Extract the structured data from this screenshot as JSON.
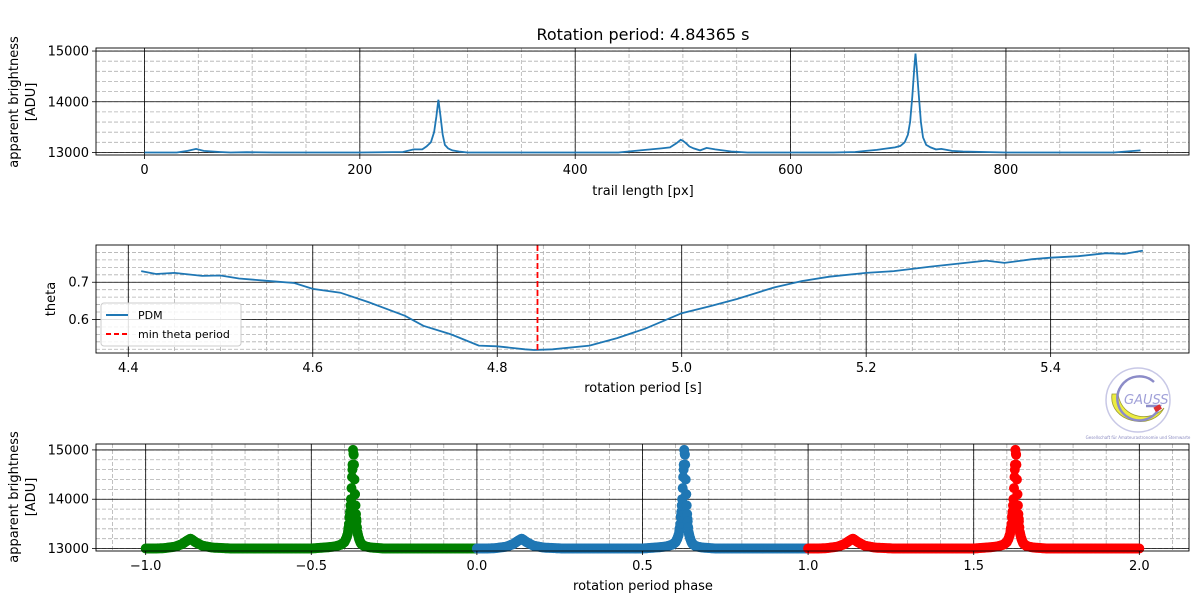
{
  "chart_data": [
    {
      "type": "line",
      "title": "Rotation period: 4.84365 s",
      "xlabel": "trail length [px]",
      "ylabel": [
        "apparent brightness",
        "[ADU]"
      ],
      "xlim": [
        -45,
        970
      ],
      "ylim": [
        12950,
        15060
      ],
      "xticks": [
        0,
        200,
        400,
        600,
        800
      ],
      "xtick_labels": [
        "0",
        "200",
        "400",
        "600",
        "800"
      ],
      "yticks": [
        13000,
        14000,
        15000
      ],
      "ytick_labels": [
        "13000",
        "14000",
        "15000"
      ],
      "grid": "major solid, minor dashed",
      "color": "#1f77b4",
      "series": [
        {
          "x": [
            0,
            30,
            40,
            48,
            55,
            70,
            80,
            95,
            120,
            160,
            200,
            240,
            250,
            258,
            262,
            266,
            269,
            271,
            273,
            275,
            277,
            279,
            282,
            286,
            292,
            300,
            320,
            360,
            400,
            440,
            460,
            470,
            480,
            488,
            494,
            498,
            500,
            503,
            506,
            510,
            516,
            522,
            530,
            545,
            560,
            600,
            640,
            660,
            670,
            680,
            690,
            697,
            702,
            706,
            709,
            711,
            713,
            715,
            716,
            717,
            719,
            721,
            723,
            726,
            730,
            735,
            740,
            750,
            760,
            800,
            850,
            900,
            925
          ],
          "y": [
            13000,
            13000,
            13030,
            13070,
            13030,
            13010,
            13000,
            13005,
            13000,
            13000,
            13000,
            13010,
            13060,
            13060,
            13120,
            13200,
            13400,
            13700,
            14040,
            13700,
            13350,
            13150,
            13080,
            13040,
            13020,
            13000,
            13000,
            13000,
            13000,
            13000,
            13040,
            13060,
            13080,
            13100,
            13180,
            13250,
            13230,
            13180,
            13120,
            13080,
            13040,
            13090,
            13060,
            13020,
            13000,
            13000,
            13000,
            13010,
            13030,
            13050,
            13080,
            13100,
            13130,
            13200,
            13350,
            13600,
            14100,
            14700,
            14950,
            14700,
            14150,
            13600,
            13300,
            13150,
            13100,
            13060,
            13070,
            13030,
            13020,
            13000,
            13000,
            13000,
            13040
          ]
        }
      ]
    },
    {
      "type": "line",
      "xlabel": "rotation period [s]",
      "ylabel": "theta",
      "xlim": [
        4.365,
        5.55
      ],
      "ylim": [
        0.51,
        0.8
      ],
      "xticks": [
        4.4,
        4.6,
        4.8,
        5.0,
        5.2,
        5.4
      ],
      "xtick_labels": [
        "4.4",
        "4.6",
        "4.8",
        "5.0",
        "5.2",
        "5.4"
      ],
      "yticks": [
        0.6,
        0.7
      ],
      "ytick_labels": [
        "0.6",
        "0.7"
      ],
      "grid": "major solid, minor dashed",
      "legend_position": "lower-left",
      "series": [
        {
          "name": "PDM",
          "color": "#1f77b4",
          "x": [
            4.414,
            4.43,
            4.45,
            4.48,
            4.5,
            4.52,
            4.55,
            4.58,
            4.6,
            4.63,
            4.66,
            4.7,
            4.72,
            4.75,
            4.78,
            4.8,
            4.83,
            4.84,
            4.86,
            4.9,
            4.93,
            4.96,
            5.0,
            5.03,
            5.06,
            5.1,
            5.13,
            5.16,
            5.2,
            5.23,
            5.27,
            5.3,
            5.33,
            5.35,
            5.38,
            5.4,
            5.43,
            5.46,
            5.48,
            5.5
          ],
          "y": [
            0.73,
            0.722,
            0.725,
            0.717,
            0.718,
            0.71,
            0.704,
            0.698,
            0.682,
            0.672,
            0.647,
            0.61,
            0.583,
            0.56,
            0.53,
            0.528,
            0.52,
            0.518,
            0.52,
            0.53,
            0.55,
            0.575,
            0.617,
            0.635,
            0.655,
            0.686,
            0.703,
            0.715,
            0.725,
            0.73,
            0.742,
            0.75,
            0.758,
            0.752,
            0.762,
            0.766,
            0.77,
            0.778,
            0.776,
            0.785
          ]
        },
        {
          "name": "min theta period",
          "color": "#ff0000",
          "style": "dashed",
          "x_value": 4.84365
        }
      ]
    },
    {
      "type": "scatter",
      "xlabel": "rotation period phase",
      "ylabel": [
        "apparent brightness",
        "[ADU]"
      ],
      "xlim": [
        -1.15,
        2.15
      ],
      "ylim": [
        12950,
        15120
      ],
      "xticks": [
        -1.0,
        -0.5,
        0.0,
        0.5,
        1.0,
        1.5,
        2.0
      ],
      "xtick_labels": [
        "−1.0",
        "−0.5",
        "0.0",
        "0.5",
        "1.0",
        "1.5",
        "2.0"
      ],
      "yticks": [
        13000,
        14000,
        15000
      ],
      "ytick_labels": [
        "13000",
        "14000",
        "15000"
      ],
      "grid": "major solid, minor dashed",
      "series": [
        {
          "color": "#008000",
          "phase_offset": -1
        },
        {
          "color": "#1f77b4",
          "phase_offset": 0
        },
        {
          "color": "#ff0000",
          "phase_offset": 1
        }
      ],
      "profile_phase": [
        0.0,
        0.03,
        0.06,
        0.09,
        0.11,
        0.125,
        0.135,
        0.15,
        0.17,
        0.2,
        0.26,
        0.32,
        0.4,
        0.5,
        0.54,
        0.57,
        0.59,
        0.6,
        0.605,
        0.61,
        0.614,
        0.617,
        0.62,
        0.622,
        0.624,
        0.626,
        0.628,
        0.63,
        0.632,
        0.634,
        0.637,
        0.64,
        0.645,
        0.65,
        0.66,
        0.68,
        0.72,
        0.8,
        0.9,
        1.0
      ],
      "profile_brightness": [
        13000,
        13000,
        13010,
        13040,
        13090,
        13160,
        13200,
        13130,
        13060,
        13020,
        13000,
        13000,
        13000,
        13000,
        13020,
        13040,
        13080,
        13130,
        13200,
        13300,
        13500,
        13750,
        14000,
        14300,
        14600,
        15000,
        14900,
        14500,
        14100,
        13800,
        13500,
        13300,
        13180,
        13100,
        13050,
        13020,
        13000,
        13000,
        13000,
        13000
      ]
    }
  ],
  "logo": {
    "text": "GAUSS",
    "caption": "Gesellschaft für Amateurastronomie und Sternwarte"
  }
}
